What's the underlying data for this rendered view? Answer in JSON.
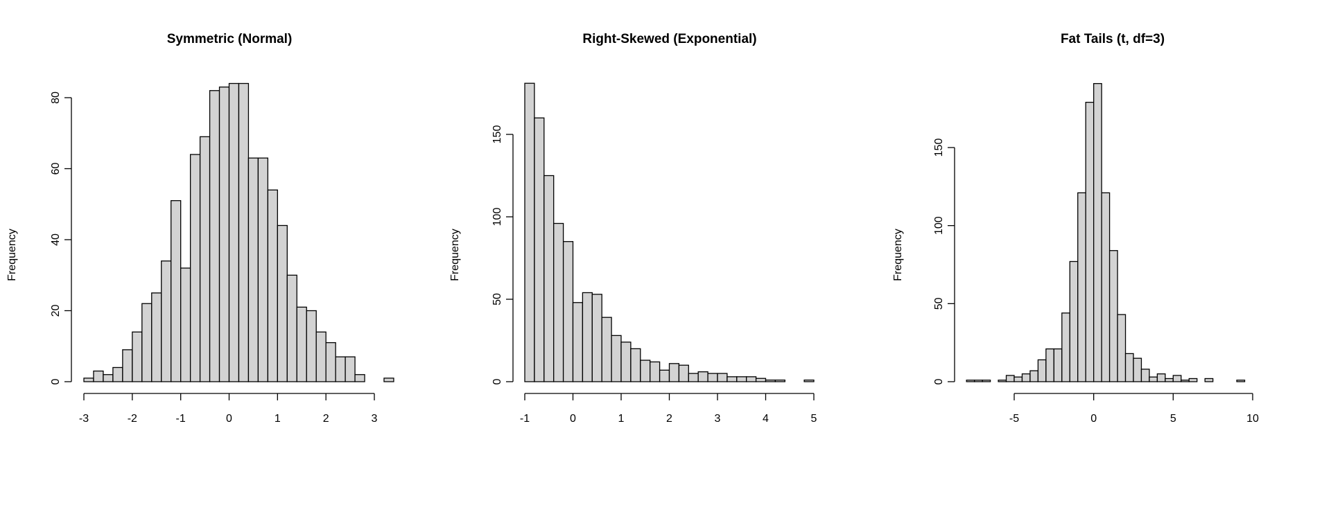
{
  "colors": {
    "bar_fill": "#d3d3d3",
    "bar_stroke": "#000000",
    "background": "#ffffff"
  },
  "chart_data": [
    {
      "type": "bar",
      "title": "Symmetric (Normal)",
      "xlabel": "",
      "ylabel": "Frequency",
      "bin_start": -3.0,
      "bin_width": 0.2,
      "values": [
        1,
        3,
        2,
        4,
        9,
        14,
        22,
        25,
        34,
        51,
        32,
        64,
        69,
        82,
        83,
        84,
        84,
        63,
        63,
        54,
        44,
        30,
        21,
        20,
        14,
        11,
        7,
        7,
        2,
        0,
        0,
        1
      ],
      "xticks": [
        -3,
        -2,
        -1,
        0,
        1,
        2,
        3
      ],
      "xtick_labels": [
        "-3",
        "-2",
        "-1",
        "0",
        "1",
        "2",
        "3"
      ],
      "yticks": [
        0,
        20,
        40,
        60,
        80
      ],
      "ytick_labels": [
        "0",
        "20",
        "40",
        "60",
        "80"
      ],
      "grid": false
    },
    {
      "type": "bar",
      "title": "Right-Skewed (Exponential)",
      "xlabel": "",
      "ylabel": "Frequency",
      "bin_start": -1.0,
      "bin_width": 0.2,
      "values": [
        181,
        160,
        125,
        96,
        85,
        48,
        54,
        53,
        39,
        28,
        24,
        20,
        13,
        12,
        7,
        11,
        10,
        5,
        6,
        5,
        5,
        3,
        3,
        3,
        2,
        1,
        1,
        0,
        0,
        1
      ],
      "xticks": [
        -1,
        0,
        1,
        2,
        3,
        4,
        5
      ],
      "xtick_labels": [
        "-1",
        "0",
        "1",
        "2",
        "3",
        "4",
        "5"
      ],
      "yticks": [
        0,
        50,
        100,
        150
      ],
      "ytick_labels": [
        "0",
        "50",
        "100",
        "150"
      ],
      "grid": false
    },
    {
      "type": "bar",
      "title": "Fat Tails (t, df=3)",
      "xlabel": "",
      "ylabel": "Frequency",
      "bin_start": -8.0,
      "bin_width": 0.5,
      "values": [
        1,
        1,
        1,
        0,
        1,
        4,
        3,
        5,
        7,
        14,
        21,
        21,
        44,
        77,
        121,
        179,
        191,
        121,
        84,
        43,
        18,
        15,
        8,
        3,
        5,
        2,
        4,
        1,
        2,
        0,
        2,
        0,
        0,
        0,
        1
      ],
      "xticks": [
        -5,
        0,
        5,
        10
      ],
      "xtick_labels": [
        "-5",
        "0",
        "5",
        "10"
      ],
      "yticks": [
        0,
        50,
        100,
        150
      ],
      "ytick_labels": [
        "0",
        "50",
        "100",
        "150"
      ],
      "grid": false
    }
  ]
}
